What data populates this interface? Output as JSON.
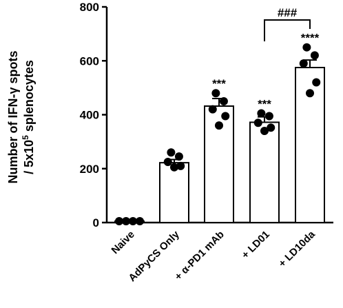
{
  "chart_data": {
    "type": "bar",
    "ylabel": {
      "line1": "Number of IFN-γ spots",
      "line2_prefix": "/ 5x10",
      "line2_sup": "5",
      "line2_suffix": " splenocytes"
    },
    "ylim": [
      0,
      800
    ],
    "yticks": [
      0,
      200,
      400,
      600,
      800
    ],
    "categories": [
      "Naive",
      "AdPyCS Only",
      "+ α-PD1 mAb",
      "+ LD01",
      "+ LD10da"
    ],
    "values": [
      5,
      222,
      432,
      372,
      575
    ],
    "errors": [
      2,
      12,
      28,
      20,
      28
    ],
    "points": [
      [
        5,
        5,
        5,
        5
      ],
      [
        260,
        245,
        225,
        210,
        205
      ],
      [
        480,
        450,
        420,
        395,
        360
      ],
      [
        405,
        395,
        370,
        352,
        340
      ],
      [
        650,
        620,
        590,
        520,
        480
      ]
    ],
    "significance": [
      "",
      "",
      "***",
      "***",
      "****"
    ],
    "comparison": {
      "from": "+ LD01",
      "to": "+ LD10da",
      "label": "###"
    },
    "grid": false,
    "legend": "none"
  }
}
